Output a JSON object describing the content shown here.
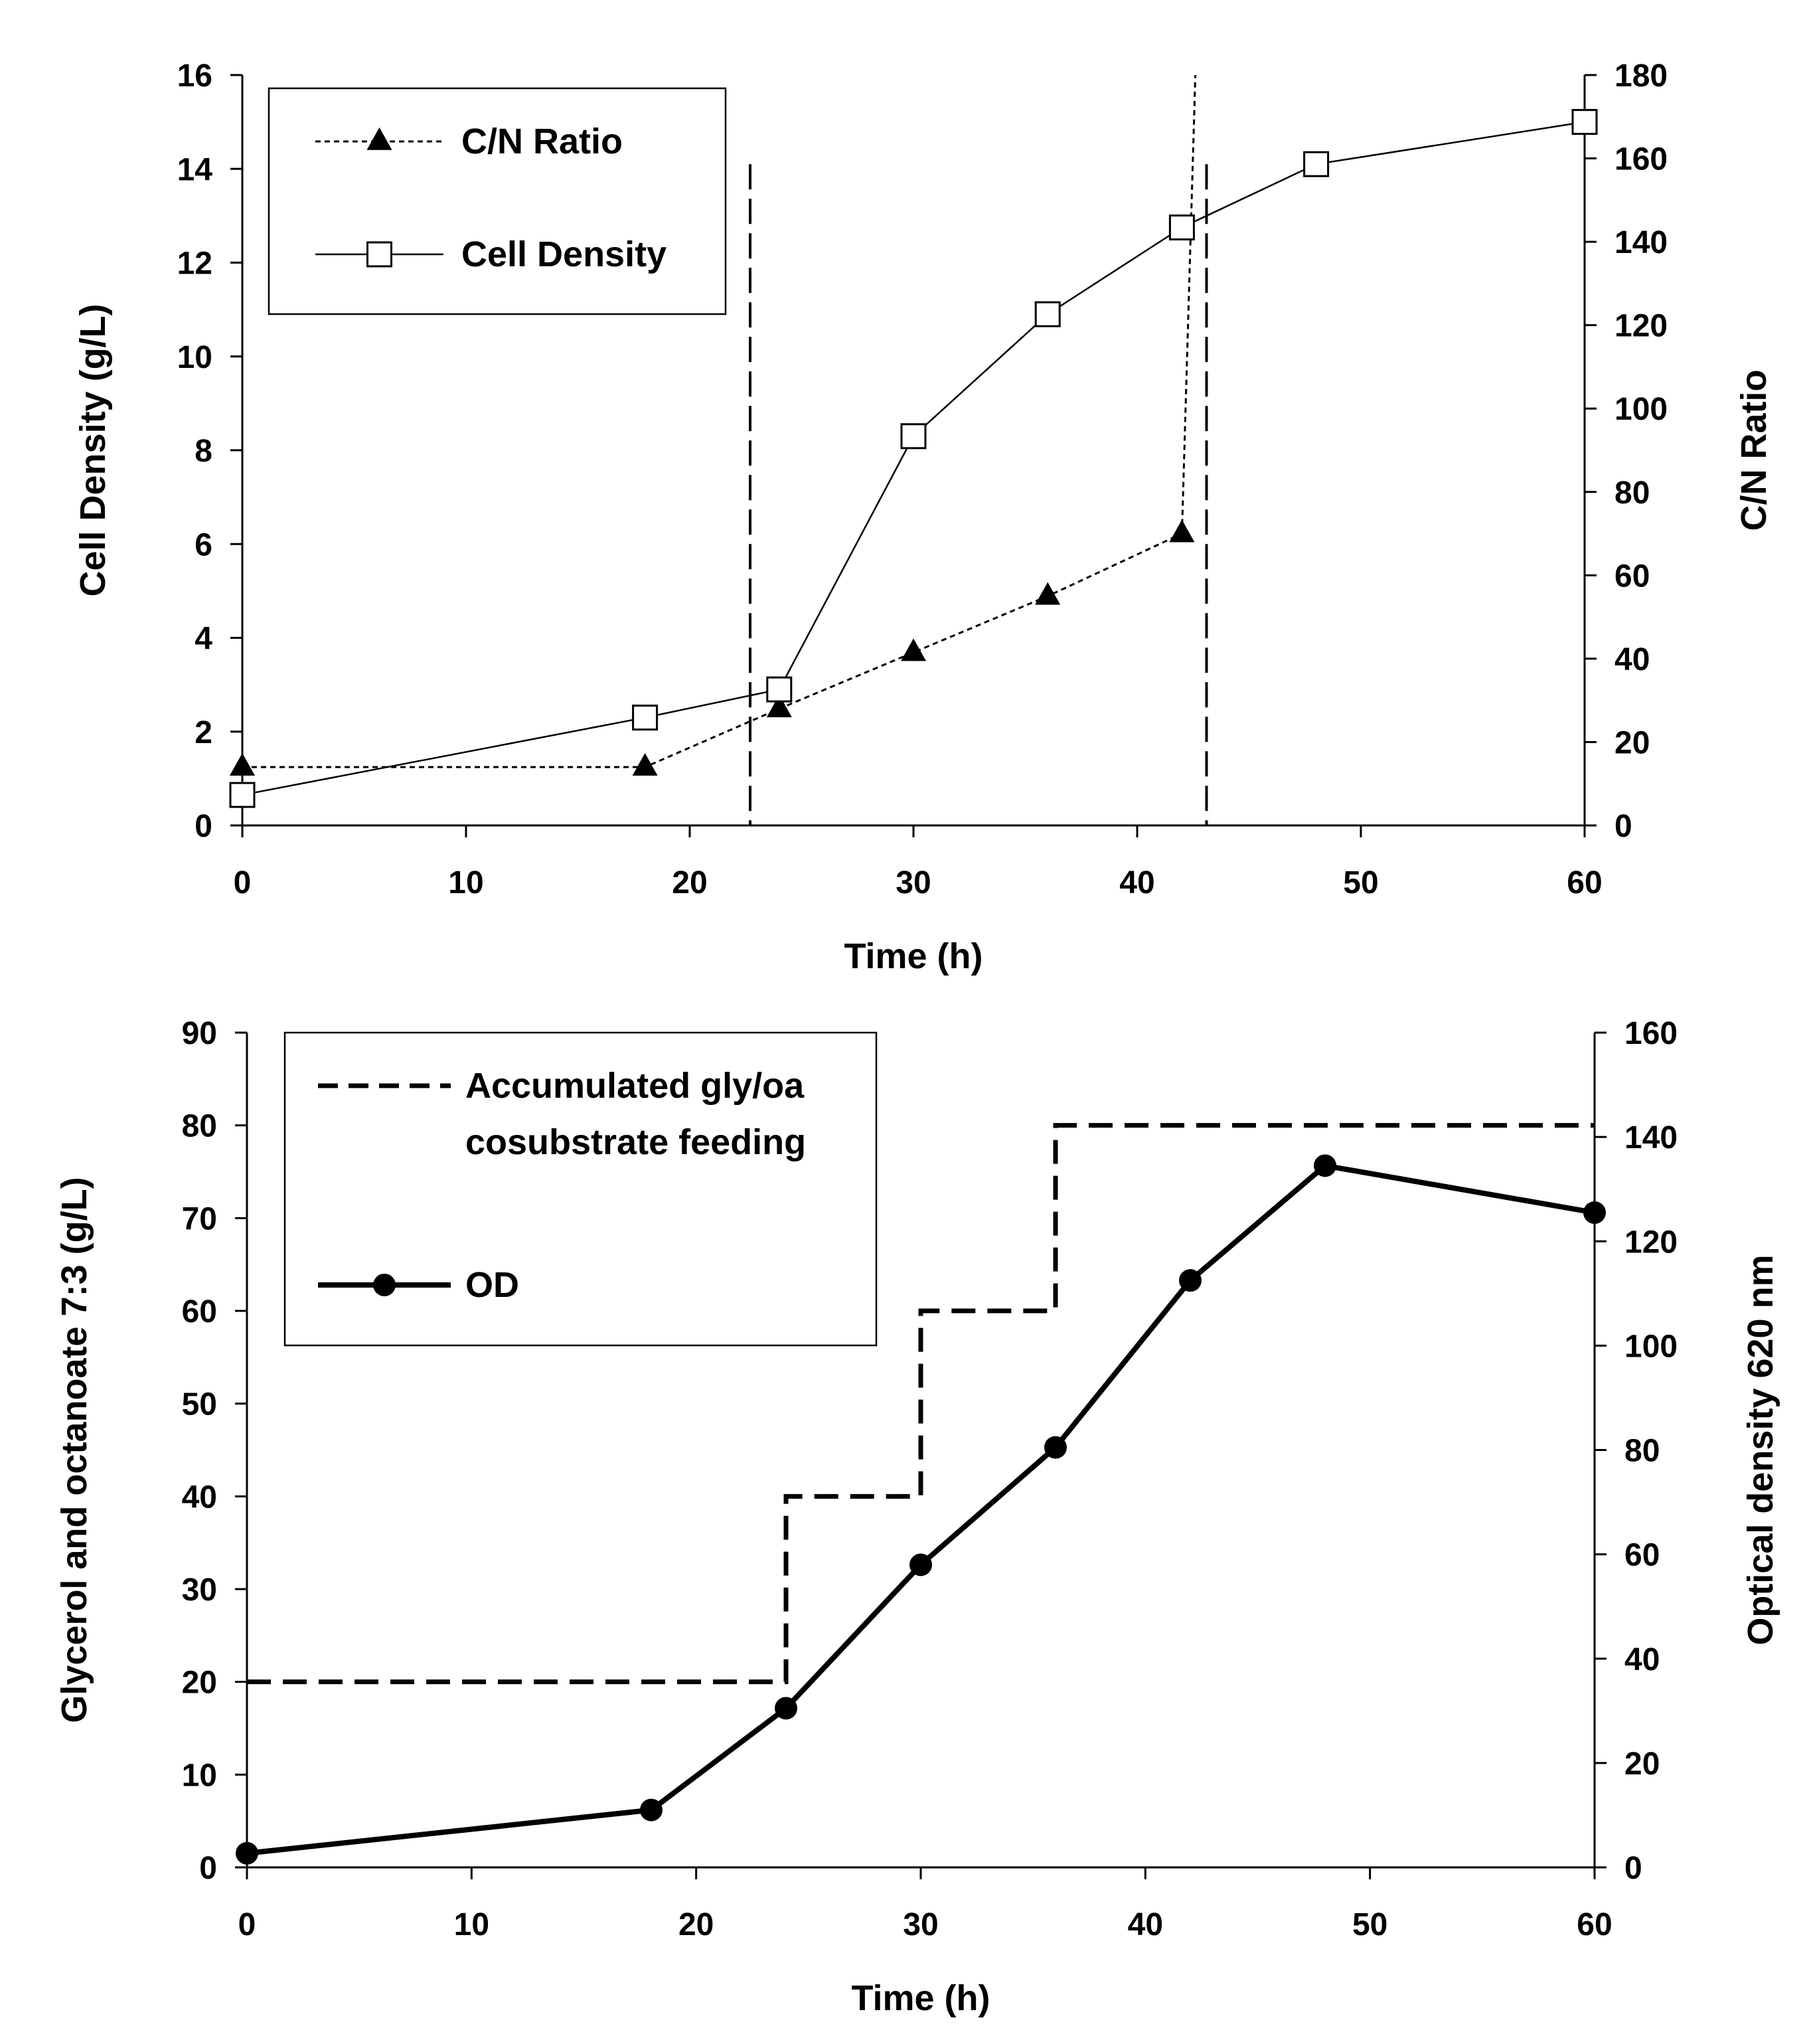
{
  "chart_data": [
    {
      "type": "line",
      "xlabel": "Time (h)",
      "ylabel": "Cell Density (g/L)",
      "y2label": "C/N Ratio",
      "xlim": [
        0,
        60
      ],
      "ylim": [
        0,
        16
      ],
      "y2lim": [
        0,
        180
      ],
      "xticks": [
        "0",
        "10",
        "20",
        "30",
        "40",
        "50",
        "60"
      ],
      "yticks": [
        "0",
        "2",
        "4",
        "6",
        "8",
        "10",
        "12",
        "14",
        "16"
      ],
      "y2ticks": [
        "0",
        "20",
        "40",
        "60",
        "80",
        "100",
        "120",
        "140",
        "160",
        "180"
      ],
      "legend_position": "top-left",
      "series": [
        {
          "name": "C/N Ratio",
          "axis": "right",
          "marker": "filled-triangle",
          "line": "dotted",
          "x": [
            0,
            18,
            24,
            30,
            36,
            42
          ],
          "y": [
            14,
            14,
            28,
            41.5,
            55,
            70
          ],
          "tail": {
            "x": [
              42,
              42.6
            ],
            "y": [
              70,
              180
            ]
          }
        },
        {
          "name": "Cell Density",
          "axis": "left",
          "marker": "open-square",
          "line": "solid-thin",
          "x": [
            0,
            18,
            24,
            30,
            36,
            42,
            48,
            60
          ],
          "y": [
            0.65,
            2.3,
            2.9,
            8.3,
            10.9,
            12.75,
            14.1,
            15
          ]
        }
      ],
      "vlines": [
        {
          "x": 22.7,
          "ylim": [
            0,
            14.1
          ],
          "style": "dashed"
        },
        {
          "x": 43.1,
          "ylim": [
            0,
            14.1
          ],
          "style": "dashed"
        }
      ]
    },
    {
      "type": "line",
      "xlabel": "Time (h)",
      "ylabel": "Glycerol and octanoate 7:3 (g/L)",
      "y2label": "Optical density 620 nm",
      "xlim": [
        0,
        60
      ],
      "ylim": [
        0,
        90
      ],
      "y2lim": [
        0,
        160
      ],
      "xticks": [
        "0",
        "10",
        "20",
        "30",
        "40",
        "50",
        "60"
      ],
      "yticks": [
        "0",
        "10",
        "20",
        "30",
        "40",
        "50",
        "60",
        "70",
        "80",
        "90"
      ],
      "y2ticks": [
        "0",
        "20",
        "40",
        "60",
        "80",
        "100",
        "120",
        "140",
        "160"
      ],
      "legend_position": "top-left",
      "series": [
        {
          "name": "Accumulated gly/oa cosubstrate feeding",
          "name_lines": [
            "Accumulated gly/oa",
            "cosubstrate feeding"
          ],
          "axis": "left",
          "line": "dashed-thick",
          "step": true,
          "x": [
            0,
            24,
            24,
            30,
            30,
            36,
            36,
            60
          ],
          "y": [
            20,
            20,
            40,
            40,
            60,
            60,
            80,
            80
          ]
        },
        {
          "name": "OD",
          "axis": "right",
          "marker": "filled-circle",
          "line": "solid-thick",
          "x": [
            0,
            18,
            24,
            30,
            36,
            42,
            48,
            60
          ],
          "y": [
            2.7,
            11,
            30.5,
            58,
            80.5,
            112.5,
            134.5,
            125.5
          ]
        }
      ]
    }
  ]
}
